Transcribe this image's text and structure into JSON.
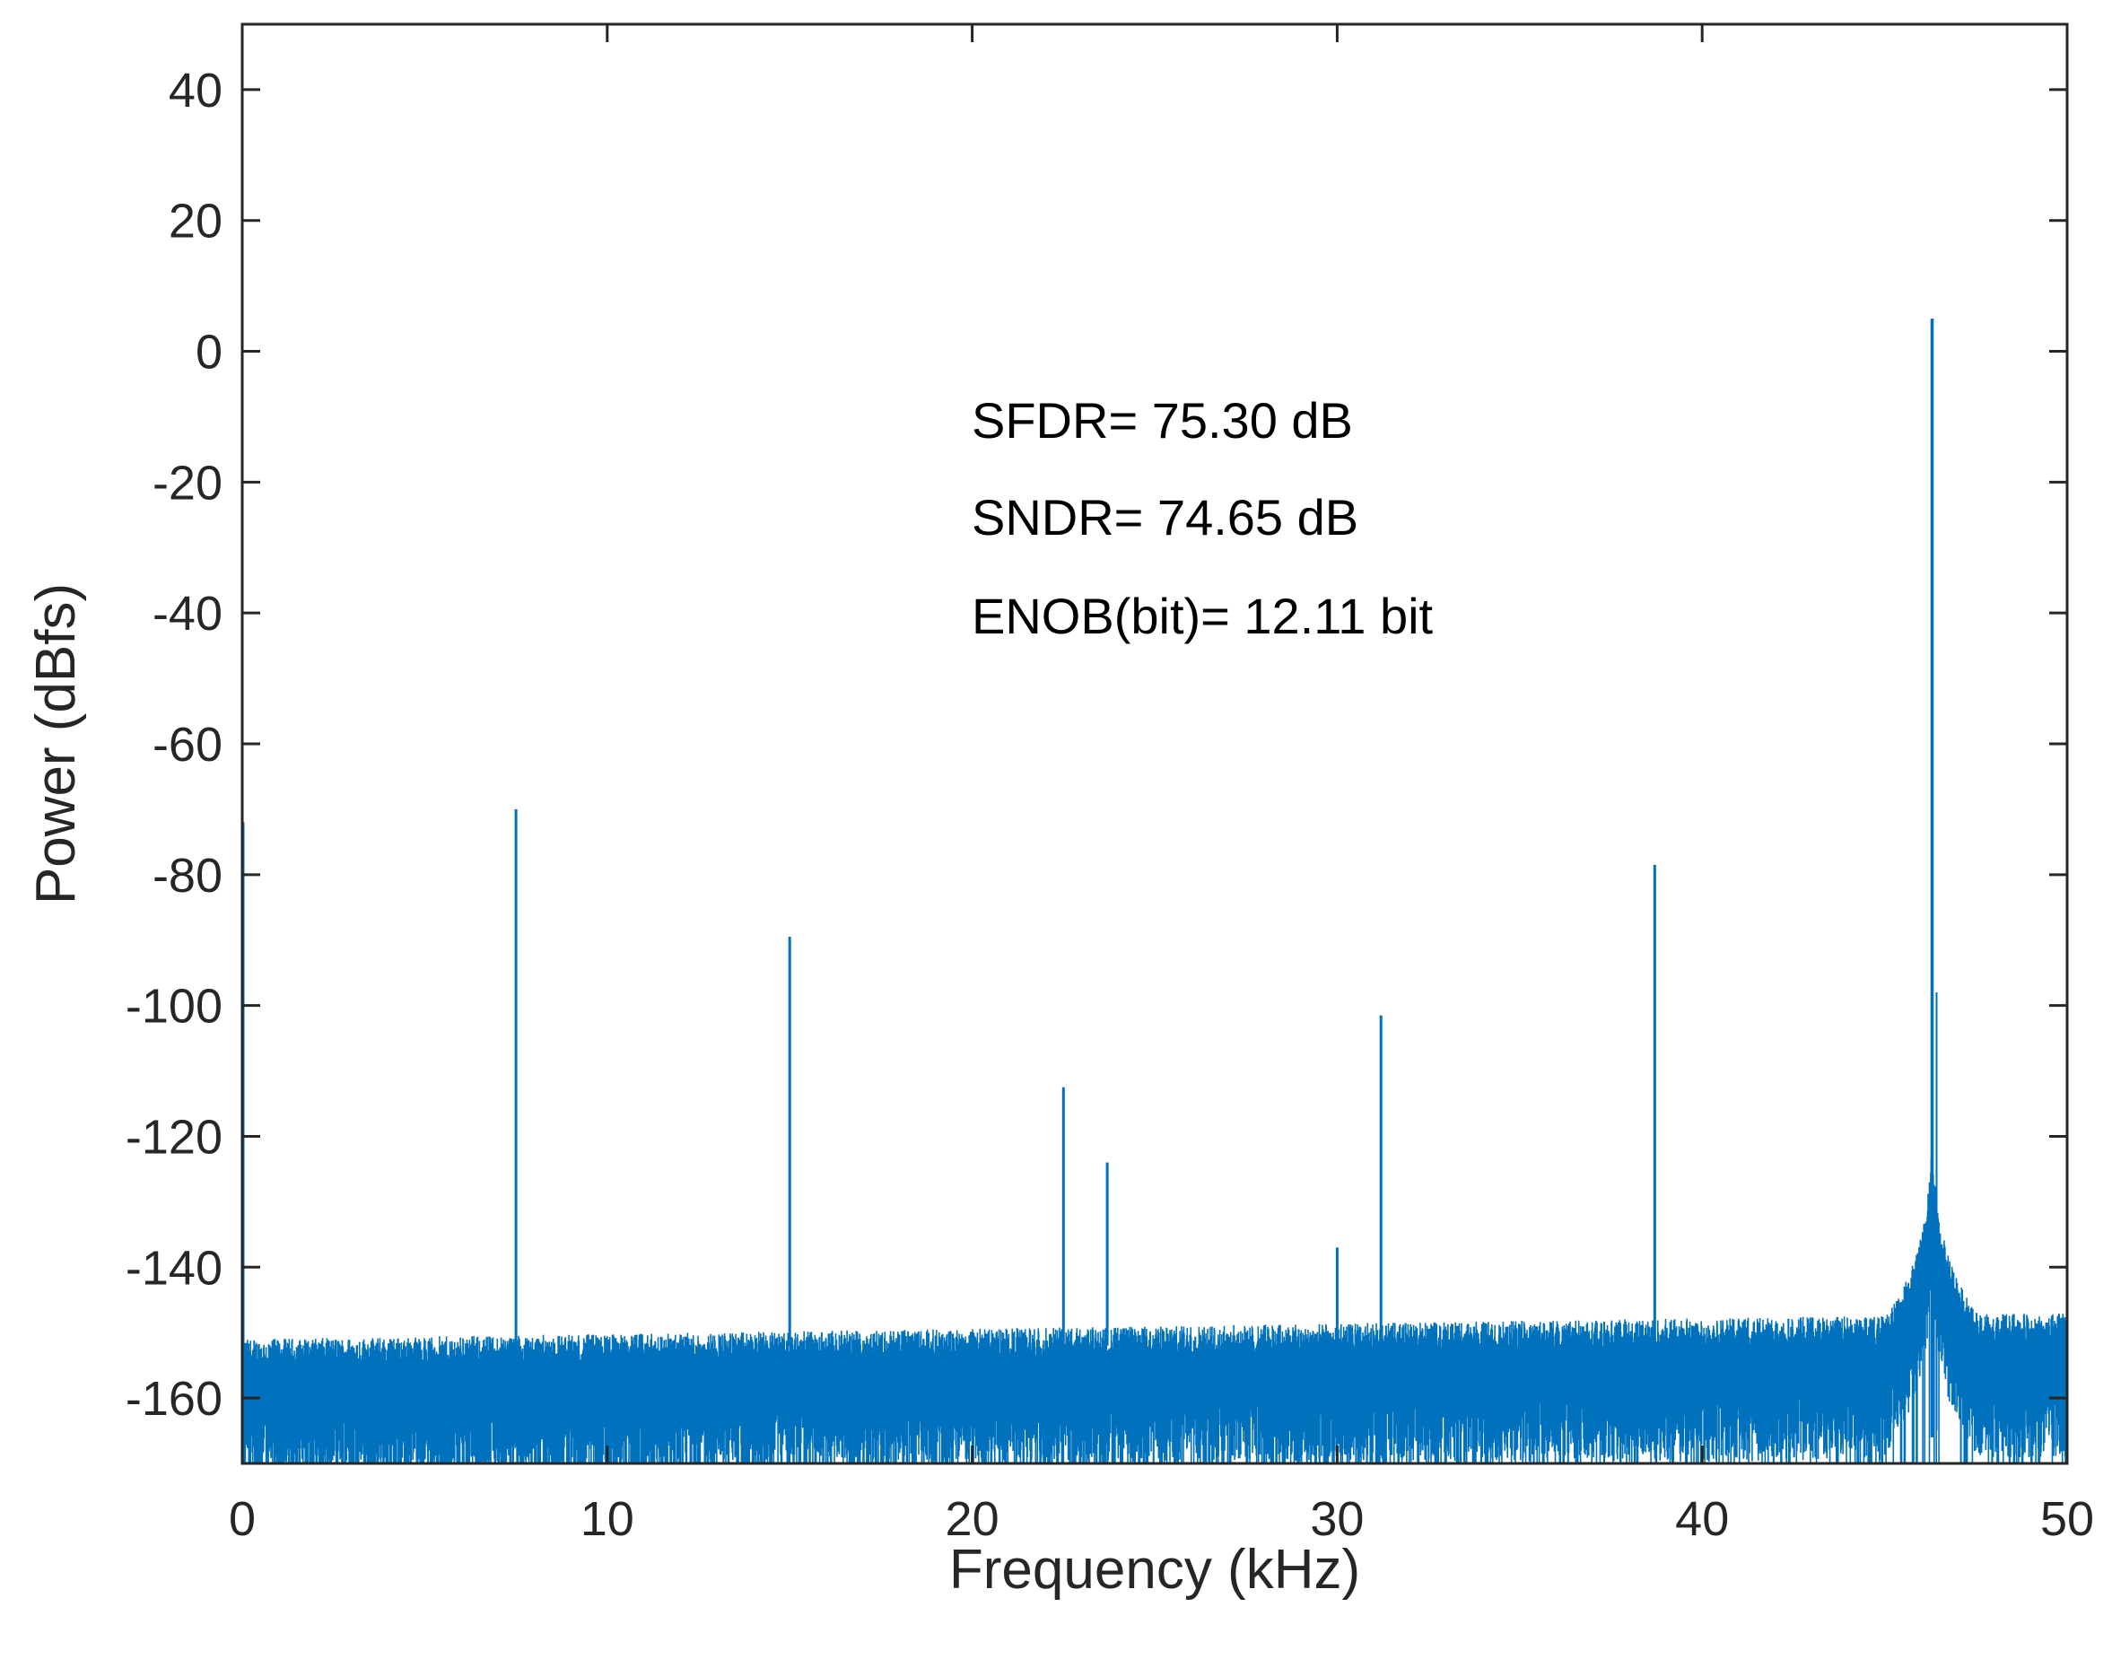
{
  "chart_data": {
    "type": "line",
    "title": "",
    "xlabel": "Frequency (kHz)",
    "ylabel": "Power (dBfs)",
    "xlim": [
      0,
      50
    ],
    "ylim": [
      -170,
      50
    ],
    "xticks": [
      0,
      10,
      20,
      30,
      40,
      50
    ],
    "yticks": [
      40,
      20,
      0,
      -20,
      -40,
      -60,
      -80,
      -100,
      -120,
      -140,
      -160
    ],
    "grid": false,
    "series_color": "#0072BD",
    "noise_floor_dBfs": -160,
    "fundamental": {
      "freq_kHz": 46.3,
      "power_dBfs": 5,
      "skirt_peak_dBfs": -125
    },
    "spurs": [
      {
        "freq_kHz": 0.0,
        "power_dBfs": -72
      },
      {
        "freq_kHz": 7.5,
        "power_dBfs": -70
      },
      {
        "freq_kHz": 15.0,
        "power_dBfs": -89.5
      },
      {
        "freq_kHz": 22.5,
        "power_dBfs": -112.5
      },
      {
        "freq_kHz": 23.7,
        "power_dBfs": -124
      },
      {
        "freq_kHz": 30.0,
        "power_dBfs": -137
      },
      {
        "freq_kHz": 31.2,
        "power_dBfs": -101.5
      },
      {
        "freq_kHz": 38.7,
        "power_dBfs": -78.5
      }
    ],
    "annotations": [
      "SFDR= 75.30 dB",
      "SNDR= 74.65 dB",
      "ENOB(bit)= 12.11 bit"
    ]
  }
}
